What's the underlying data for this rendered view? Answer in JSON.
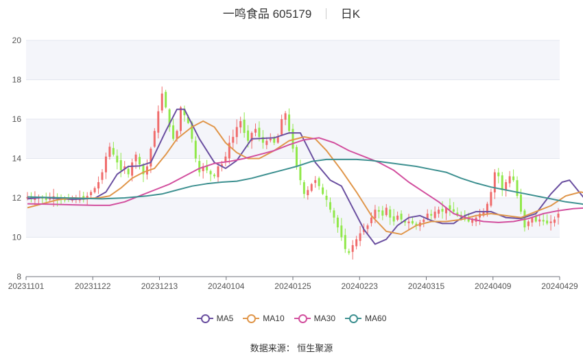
{
  "header": {
    "title": "一鸣食品 605179",
    "period": "日K"
  },
  "source": "数据来源： 恒生聚源",
  "colors": {
    "up": "#f06b6b",
    "down": "#90e84a",
    "grid_band": "#f4f5fa",
    "grid_line": "#e3e6ef"
  },
  "chart_data": {
    "type": "candlestick",
    "x_ticks": [
      "20231101",
      "20231122",
      "20231213",
      "20240104",
      "20240125",
      "20240223",
      "20240315",
      "20240409",
      "20240429"
    ],
    "y_ticks": [
      8,
      10,
      12,
      14,
      16,
      18,
      20
    ],
    "ylim": [
      8,
      20
    ],
    "legend": [
      {
        "name": "MA5",
        "color": "#6a4fa0"
      },
      {
        "name": "MA10",
        "color": "#e0964a"
      },
      {
        "name": "MA30",
        "color": "#d24f9e"
      },
      {
        "name": "MA60",
        "color": "#3d9090"
      }
    ],
    "close": [
      12.05,
      12.0,
      11.98,
      12.02,
      11.96,
      11.9,
      12.05,
      12.08,
      11.95,
      11.9,
      11.88,
      11.92,
      11.95,
      11.98,
      12.0,
      11.9,
      12.1,
      12.3,
      12.5,
      12.8,
      13.3,
      14.1,
      14.6,
      14.2,
      13.8,
      13.4,
      13.6,
      13.2,
      13.8,
      14.2,
      13.7,
      13.2,
      13.6,
      14.5,
      15.4,
      16.4,
      17.3,
      16.6,
      15.6,
      15.0,
      15.4,
      16.6,
      16.2,
      15.8,
      15.0,
      14.0,
      13.3,
      13.6,
      13.4,
      13.2,
      13.1,
      13.6,
      13.7,
      14.1,
      14.8,
      15.1,
      15.6,
      15.9,
      15.3,
      14.9,
      15.3,
      15.5,
      15.1,
      14.8,
      14.9,
      15.0,
      14.8,
      15.1,
      16.0,
      16.3,
      15.4,
      14.5,
      13.6,
      12.9,
      12.2,
      12.4,
      12.7,
      12.9,
      12.6,
      12.2,
      11.9,
      11.4,
      11.0,
      10.5,
      10.0,
      9.4,
      9.2,
      9.6,
      9.9,
      10.2,
      10.4,
      10.6,
      11.0,
      11.4,
      11.3,
      11.1,
      11.5,
      11.0,
      10.8,
      11.1,
      10.9,
      10.75,
      10.8,
      10.7,
      10.6,
      10.75,
      10.9,
      11.2,
      11.1,
      11.3,
      11.4,
      11.3,
      11.5,
      11.4,
      11.3,
      11.1,
      11.0,
      10.9,
      10.8,
      10.9,
      11.0,
      11.2,
      11.3,
      11.7,
      12.3,
      13.3,
      13.1,
      12.4,
      12.8,
      13.1,
      12.9,
      12.1,
      11.3,
      10.5,
      10.8,
      11.0,
      10.8,
      10.9,
      10.8,
      10.7,
      10.8,
      10.9,
      11.2
    ],
    "series": [
      {
        "name": "MA5",
        "points": [
          [
            0,
            11.95
          ],
          [
            4,
            12.02
          ],
          [
            12,
            11.92
          ],
          [
            18,
            11.98
          ],
          [
            21,
            12.3
          ],
          [
            24,
            13.2
          ],
          [
            27,
            13.6
          ],
          [
            30,
            13.62
          ],
          [
            33,
            13.8
          ],
          [
            37,
            15.4
          ],
          [
            40,
            16.5
          ],
          [
            42,
            16.5
          ],
          [
            46,
            15.0
          ],
          [
            50,
            13.8
          ],
          [
            53,
            13.5
          ],
          [
            56,
            13.9
          ],
          [
            60,
            15.0
          ],
          [
            66,
            15.05
          ],
          [
            70,
            15.3
          ],
          [
            73,
            15.3
          ],
          [
            77,
            13.8
          ],
          [
            81,
            12.9
          ],
          [
            84,
            12.6
          ],
          [
            87,
            11.5
          ],
          [
            90,
            10.4
          ],
          [
            93,
            9.65
          ],
          [
            96,
            9.9
          ],
          [
            99,
            10.6
          ],
          [
            102,
            11.0
          ],
          [
            105,
            11.1
          ],
          [
            108,
            10.85
          ],
          [
            111,
            10.7
          ],
          [
            114,
            10.7
          ],
          [
            117,
            11.1
          ],
          [
            120,
            11.3
          ],
          [
            124,
            11.3
          ],
          [
            128,
            11.0
          ],
          [
            132,
            10.95
          ],
          [
            136,
            11.2
          ],
          [
            140,
            12.2
          ],
          [
            143,
            12.8
          ],
          [
            145,
            12.9
          ],
          [
            148,
            12.2
          ],
          [
            151,
            11.5
          ],
          [
            154,
            11.0
          ],
          [
            157,
            10.8
          ],
          [
            160,
            10.8
          ],
          [
            162,
            11.0
          ]
        ]
      },
      {
        "name": "MA10",
        "points": [
          [
            0,
            11.5
          ],
          [
            4,
            11.7
          ],
          [
            8,
            11.9
          ],
          [
            12,
            12.0
          ],
          [
            16,
            11.98
          ],
          [
            19,
            12.0
          ],
          [
            22,
            12.1
          ],
          [
            25,
            12.5
          ],
          [
            28,
            13.0
          ],
          [
            31,
            13.3
          ],
          [
            34,
            13.5
          ],
          [
            37,
            14.2
          ],
          [
            40,
            15.0
          ],
          [
            44,
            15.6
          ],
          [
            47,
            15.9
          ],
          [
            50,
            15.6
          ],
          [
            53,
            14.8
          ],
          [
            56,
            14.3
          ],
          [
            59,
            14.0
          ],
          [
            62,
            14.0
          ],
          [
            66,
            14.4
          ],
          [
            70,
            14.9
          ],
          [
            74,
            15.1
          ],
          [
            77,
            15.0
          ],
          [
            80,
            14.4
          ],
          [
            84,
            13.4
          ],
          [
            88,
            12.3
          ],
          [
            92,
            11.1
          ],
          [
            96,
            10.3
          ],
          [
            100,
            10.15
          ],
          [
            104,
            10.6
          ],
          [
            108,
            10.8
          ],
          [
            112,
            10.8
          ],
          [
            116,
            10.9
          ],
          [
            120,
            11.1
          ],
          [
            124,
            11.2
          ],
          [
            128,
            11.1
          ],
          [
            132,
            11.0
          ],
          [
            136,
            11.3
          ],
          [
            140,
            11.6
          ],
          [
            144,
            12.1
          ],
          [
            148,
            12.3
          ],
          [
            151,
            12.2
          ],
          [
            154,
            11.7
          ],
          [
            157,
            11.3
          ],
          [
            160,
            11.2
          ],
          [
            162,
            11.0
          ]
        ]
      },
      {
        "name": "MA30",
        "points": [
          [
            0,
            11.7
          ],
          [
            6,
            11.68
          ],
          [
            12,
            11.65
          ],
          [
            18,
            11.62
          ],
          [
            22,
            11.62
          ],
          [
            26,
            11.8
          ],
          [
            30,
            12.1
          ],
          [
            34,
            12.4
          ],
          [
            38,
            12.7
          ],
          [
            42,
            13.1
          ],
          [
            46,
            13.5
          ],
          [
            50,
            13.75
          ],
          [
            54,
            13.85
          ],
          [
            58,
            14.0
          ],
          [
            62,
            14.2
          ],
          [
            66,
            14.4
          ],
          [
            70,
            14.7
          ],
          [
            74,
            14.95
          ],
          [
            78,
            15.05
          ],
          [
            82,
            14.8
          ],
          [
            86,
            14.4
          ],
          [
            90,
            14.1
          ],
          [
            94,
            13.8
          ],
          [
            98,
            13.4
          ],
          [
            102,
            12.8
          ],
          [
            106,
            12.3
          ],
          [
            110,
            11.8
          ],
          [
            114,
            11.2
          ],
          [
            118,
            10.95
          ],
          [
            122,
            10.8
          ],
          [
            126,
            10.75
          ],
          [
            130,
            10.8
          ],
          [
            134,
            10.95
          ],
          [
            138,
            11.2
          ],
          [
            142,
            11.35
          ],
          [
            146,
            11.45
          ],
          [
            150,
            11.5
          ],
          [
            154,
            11.48
          ],
          [
            158,
            11.45
          ],
          [
            162,
            11.45
          ]
        ]
      },
      {
        "name": "MA60",
        "points": [
          [
            0,
            12.05
          ],
          [
            10,
            12.0
          ],
          [
            20,
            11.95
          ],
          [
            26,
            12.0
          ],
          [
            32,
            12.1
          ],
          [
            36,
            12.2
          ],
          [
            40,
            12.4
          ],
          [
            44,
            12.6
          ],
          [
            48,
            12.72
          ],
          [
            52,
            12.8
          ],
          [
            56,
            12.85
          ],
          [
            60,
            13.0
          ],
          [
            64,
            13.2
          ],
          [
            68,
            13.4
          ],
          [
            72,
            13.6
          ],
          [
            76,
            13.85
          ],
          [
            80,
            13.95
          ],
          [
            84,
            13.95
          ],
          [
            88,
            13.95
          ],
          [
            92,
            13.9
          ],
          [
            96,
            13.8
          ],
          [
            100,
            13.7
          ],
          [
            104,
            13.6
          ],
          [
            108,
            13.45
          ],
          [
            112,
            13.3
          ],
          [
            116,
            13.0
          ],
          [
            120,
            12.75
          ],
          [
            124,
            12.55
          ],
          [
            128,
            12.4
          ],
          [
            132,
            12.25
          ],
          [
            136,
            12.1
          ],
          [
            140,
            11.95
          ],
          [
            144,
            11.8
          ],
          [
            148,
            11.7
          ],
          [
            152,
            11.55
          ],
          [
            156,
            11.35
          ],
          [
            160,
            11.2
          ],
          [
            162,
            11.15
          ]
        ]
      }
    ]
  }
}
